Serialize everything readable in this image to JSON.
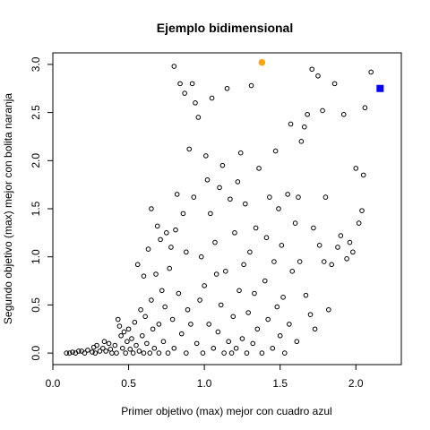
{
  "chart_data": {
    "type": "scatter",
    "title": "Ejemplo bidimensional",
    "xlabel": "Primer objetivo (max) mejor con cuadro azul",
    "ylabel": "Segundo objetivo (max) mejor con bolita naranja",
    "xlim": [
      0.0,
      2.3
    ],
    "ylim": [
      -0.12,
      3.12
    ],
    "x_ticks": [
      "0.0",
      "0.5",
      "1.0",
      "1.5",
      "2.0"
    ],
    "y_ticks": [
      "0.0",
      "0.5",
      "1.0",
      "1.5",
      "2.0",
      "2.5",
      "3.0"
    ],
    "grid": false,
    "series": [
      {
        "marker": "open-circle",
        "color": "#000000",
        "points": [
          [
            0.09,
            0.0
          ],
          [
            0.11,
            0.0
          ],
          [
            0.13,
            0.01
          ],
          [
            0.15,
            0.0
          ],
          [
            0.17,
            0.02
          ],
          [
            0.19,
            0.02
          ],
          [
            0.21,
            0.0
          ],
          [
            0.23,
            0.03
          ],
          [
            0.26,
            0.01
          ],
          [
            0.27,
            0.06
          ],
          [
            0.28,
            0.0
          ],
          [
            0.29,
            0.08
          ],
          [
            0.31,
            0.02
          ],
          [
            0.33,
            0.05
          ],
          [
            0.34,
            0.12
          ],
          [
            0.35,
            0.02
          ],
          [
            0.37,
            0.1
          ],
          [
            0.38,
            0.04
          ],
          [
            0.39,
            0.0
          ],
          [
            0.41,
            0.08
          ],
          [
            0.42,
            0.0
          ],
          [
            0.43,
            0.35
          ],
          [
            0.44,
            0.28
          ],
          [
            0.45,
            0.18
          ],
          [
            0.46,
            0.05
          ],
          [
            0.47,
            0.22
          ],
          [
            0.48,
            0.0
          ],
          [
            0.49,
            0.12
          ],
          [
            0.5,
            0.25
          ],
          [
            0.51,
            0.04
          ],
          [
            0.52,
            0.15
          ],
          [
            0.53,
            0.0
          ],
          [
            0.54,
            0.32
          ],
          [
            0.55,
            0.08
          ],
          [
            0.56,
            0.92
          ],
          [
            0.57,
            0.02
          ],
          [
            0.58,
            0.45
          ],
          [
            0.59,
            0.18
          ],
          [
            0.6,
            0.0
          ],
          [
            0.6,
            0.8
          ],
          [
            0.61,
            0.38
          ],
          [
            0.62,
            0.1
          ],
          [
            0.63,
            1.08
          ],
          [
            0.64,
            0.0
          ],
          [
            0.65,
            1.5
          ],
          [
            0.65,
            0.55
          ],
          [
            0.66,
            0.25
          ],
          [
            0.67,
            0.05
          ],
          [
            0.68,
            0.82
          ],
          [
            0.69,
            1.32
          ],
          [
            0.7,
            0.0
          ],
          [
            0.7,
            0.3
          ],
          [
            0.71,
            1.18
          ],
          [
            0.72,
            0.65
          ],
          [
            0.73,
            0.12
          ],
          [
            0.74,
            0.48
          ],
          [
            0.75,
            1.25
          ],
          [
            0.76,
            0.0
          ],
          [
            0.77,
            0.88
          ],
          [
            0.78,
            1.1
          ],
          [
            0.79,
            0.35
          ],
          [
            0.8,
            2.98
          ],
          [
            0.8,
            0.05
          ],
          [
            0.81,
            1.28
          ],
          [
            0.82,
            1.65
          ],
          [
            0.83,
            0.62
          ],
          [
            0.84,
            2.8
          ],
          [
            0.85,
            0.2
          ],
          [
            0.86,
            1.45
          ],
          [
            0.87,
            2.7
          ],
          [
            0.88,
            0.0
          ],
          [
            0.88,
            1.05
          ],
          [
            0.89,
            0.45
          ],
          [
            0.9,
            2.12
          ],
          [
            0.91,
            0.3
          ],
          [
            0.92,
            2.8
          ],
          [
            0.93,
            1.62
          ],
          [
            0.94,
            2.6
          ],
          [
            0.95,
            0.1
          ],
          [
            0.96,
            2.45
          ],
          [
            0.97,
            0.55
          ],
          [
            0.98,
            1.0
          ],
          [
            0.99,
            0.0
          ],
          [
            1.0,
            0.7
          ],
          [
            1.01,
            2.05
          ],
          [
            1.02,
            1.8
          ],
          [
            1.03,
            0.3
          ],
          [
            1.04,
            1.45
          ],
          [
            1.05,
            2.65
          ],
          [
            1.06,
            0.05
          ],
          [
            1.07,
            1.15
          ],
          [
            1.08,
            0.82
          ],
          [
            1.09,
            0.22
          ],
          [
            1.1,
            1.72
          ],
          [
            1.11,
            0.5
          ],
          [
            1.12,
            1.95
          ],
          [
            1.13,
            0.0
          ],
          [
            1.14,
            0.85
          ],
          [
            1.15,
            2.75
          ],
          [
            1.16,
            0.12
          ],
          [
            1.17,
            1.6
          ],
          [
            1.18,
            0.0
          ],
          [
            1.19,
            0.38
          ],
          [
            1.2,
            1.25
          ],
          [
            1.21,
            0.05
          ],
          [
            1.22,
            1.78
          ],
          [
            1.23,
            0.65
          ],
          [
            1.24,
            2.08
          ],
          [
            1.25,
            0.15
          ],
          [
            1.26,
            0.92
          ],
          [
            1.27,
            1.55
          ],
          [
            1.28,
            0.0
          ],
          [
            1.29,
            0.42
          ],
          [
            1.3,
            1.05
          ],
          [
            1.31,
            2.78
          ],
          [
            1.32,
            0.1
          ],
          [
            1.33,
            0.62
          ],
          [
            1.34,
            1.3
          ],
          [
            1.35,
            0.25
          ],
          [
            1.36,
            1.92
          ],
          [
            1.38,
            0.0
          ],
          [
            1.4,
            0.75
          ],
          [
            1.41,
            1.2
          ],
          [
            1.42,
            0.35
          ],
          [
            1.43,
            1.62
          ],
          [
            1.45,
            0.05
          ],
          [
            1.46,
            0.95
          ],
          [
            1.47,
            2.1
          ],
          [
            1.48,
            0.48
          ],
          [
            1.49,
            1.5
          ],
          [
            1.5,
            0.18
          ],
          [
            1.51,
            1.12
          ],
          [
            1.52,
            0.58
          ],
          [
            1.53,
            0.0
          ],
          [
            1.55,
            1.65
          ],
          [
            1.56,
            0.3
          ],
          [
            1.57,
            2.38
          ],
          [
            1.58,
            0.85
          ],
          [
            1.6,
            1.35
          ],
          [
            1.61,
            0.12
          ],
          [
            1.62,
            1.62
          ],
          [
            1.63,
            0.95
          ],
          [
            1.64,
            2.2
          ],
          [
            1.66,
            2.35
          ],
          [
            1.67,
            0.6
          ],
          [
            1.68,
            2.48
          ],
          [
            1.7,
            0.4
          ],
          [
            1.71,
            2.95
          ],
          [
            1.72,
            1.3
          ],
          [
            1.73,
            0.25
          ],
          [
            1.75,
            2.88
          ],
          [
            1.76,
            1.12
          ],
          [
            1.78,
            2.52
          ],
          [
            1.79,
            0.95
          ],
          [
            1.8,
            1.62
          ],
          [
            1.82,
            0.45
          ],
          [
            1.84,
            0.92
          ],
          [
            1.86,
            2.8
          ],
          [
            1.88,
            1.1
          ],
          [
            1.9,
            1.22
          ],
          [
            1.92,
            2.48
          ],
          [
            1.94,
            0.98
          ],
          [
            1.96,
            1.15
          ],
          [
            1.98,
            1.05
          ],
          [
            2.0,
            1.92
          ],
          [
            2.02,
            1.35
          ],
          [
            2.04,
            1.48
          ],
          [
            2.05,
            1.85
          ],
          [
            2.06,
            2.55
          ],
          [
            2.1,
            2.92
          ]
        ]
      },
      {
        "marker": "filled-circle",
        "color": "#FFA500",
        "points": [
          [
            1.38,
            3.02
          ]
        ]
      },
      {
        "marker": "filled-square",
        "color": "#0000FF",
        "points": [
          [
            2.16,
            2.75
          ]
        ]
      }
    ]
  }
}
